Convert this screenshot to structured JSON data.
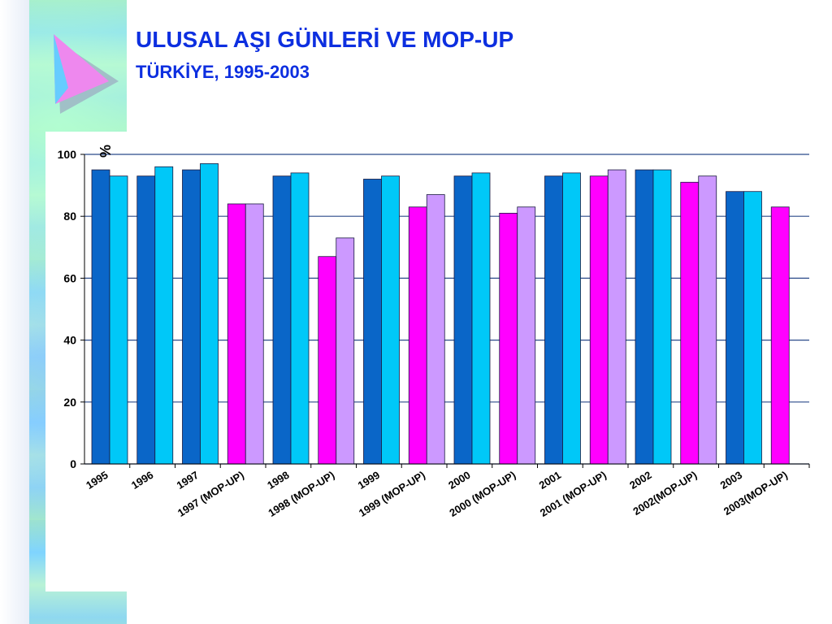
{
  "title": "ULUSAL AŞI GÜNLERİ VE MOP-UP",
  "subtitle": "TÜRKİYE, 1995-2003",
  "chart_data": {
    "type": "bar",
    "title": "",
    "xlabel": "",
    "ylabel": "%",
    "ylim": [
      0,
      100
    ],
    "yticks": [
      0,
      20,
      40,
      60,
      80,
      100
    ],
    "grid": true,
    "legend": "none",
    "categories": [
      "1995",
      "1996",
      "1997",
      "1997 (MOP-UP)",
      "1998",
      "1998 (MOP-UP)",
      "1999",
      "1999 (MOP-UP)",
      "2000",
      "2000 (MOP-UP)",
      "2001",
      "2001 (MOP-UP)",
      "2002",
      "2002(MOP-UP)",
      "2003",
      "2003(MOP-UP)"
    ],
    "groups": [
      {
        "values": [
          95,
          93
        ],
        "colors": [
          "#0a66c8",
          "#00c8f8"
        ]
      },
      {
        "values": [
          93,
          96
        ],
        "colors": [
          "#0a66c8",
          "#00c8f8"
        ]
      },
      {
        "values": [
          95,
          97
        ],
        "colors": [
          "#0a66c8",
          "#00c8f8"
        ]
      },
      {
        "values": [
          84,
          84
        ],
        "colors": [
          "#ff00ff",
          "#cc99ff"
        ]
      },
      {
        "values": [
          93,
          94
        ],
        "colors": [
          "#0a66c8",
          "#00c8f8"
        ]
      },
      {
        "values": [
          67,
          73
        ],
        "colors": [
          "#ff00ff",
          "#cc99ff"
        ]
      },
      {
        "values": [
          92,
          93
        ],
        "colors": [
          "#0a66c8",
          "#00c8f8"
        ]
      },
      {
        "values": [
          83,
          87
        ],
        "colors": [
          "#ff00ff",
          "#cc99ff"
        ]
      },
      {
        "values": [
          93,
          94
        ],
        "colors": [
          "#0a66c8",
          "#00c8f8"
        ]
      },
      {
        "values": [
          81,
          83
        ],
        "colors": [
          "#ff00ff",
          "#cc99ff"
        ]
      },
      {
        "values": [
          93,
          94
        ],
        "colors": [
          "#0a66c8",
          "#00c8f8"
        ]
      },
      {
        "values": [
          93,
          95
        ],
        "colors": [
          "#ff00ff",
          "#cc99ff"
        ]
      },
      {
        "values": [
          95,
          95
        ],
        "colors": [
          "#0a66c8",
          "#00c8f8"
        ]
      },
      {
        "values": [
          91,
          93
        ],
        "colors": [
          "#ff00ff",
          "#cc99ff"
        ]
      },
      {
        "values": [
          88,
          88
        ],
        "colors": [
          "#0a66c8",
          "#00c8f8"
        ]
      },
      {
        "values": [
          83
        ],
        "colors": [
          "#ff00ff"
        ]
      }
    ],
    "gridline_color": "#2a4a8a"
  },
  "decor": {
    "logo_icon": "triangle-logo-icon"
  }
}
